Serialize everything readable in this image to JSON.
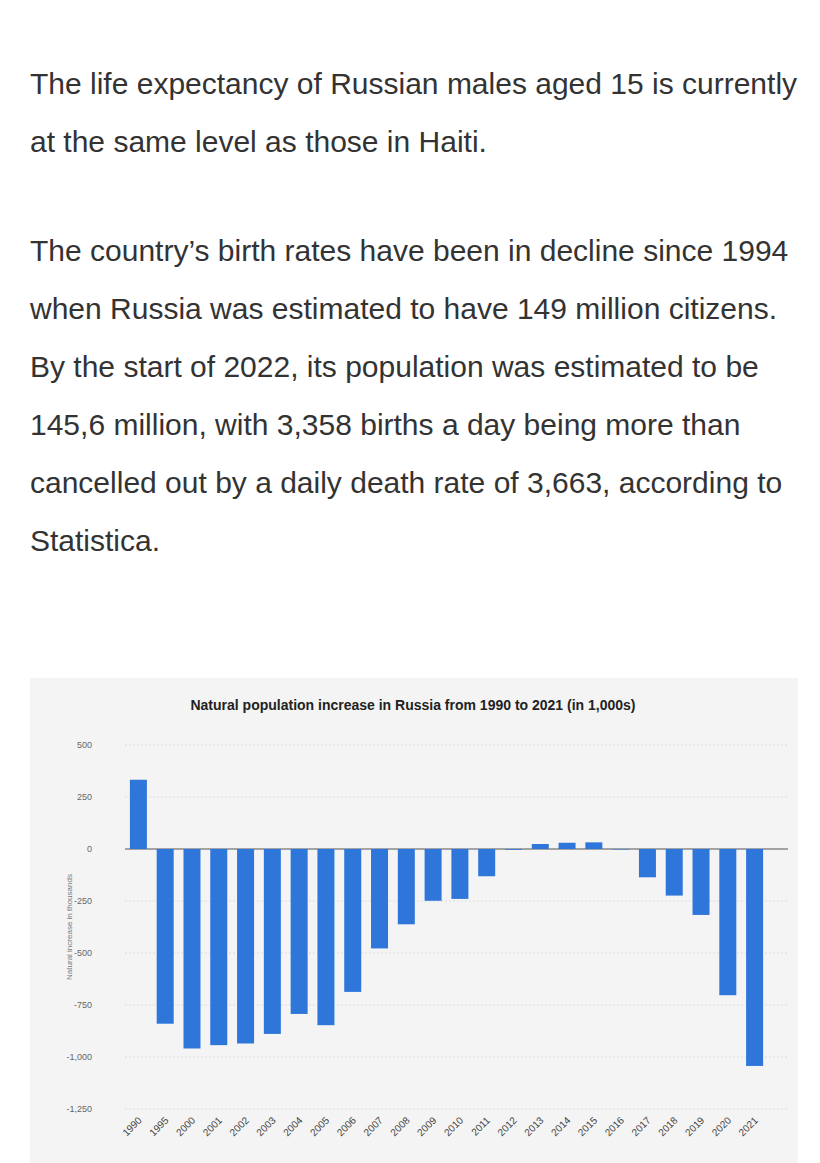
{
  "paragraphs": [
    "The life expectancy of Russian males aged 15 is currently at the same level as those in Haiti.",
    "The country’s birth rates have been in decline since 1994 when Russia was estimated to have 149 million citizens. By the start of 2022, its population was estimated to be 145,6 million, with 3,358 births a day being more than cancelled out by a daily death rate of 3,663, according to Statistica."
  ],
  "chart_data": {
    "type": "bar",
    "title": "Natural population increase in Russia from 1990 to 2021 (in 1,000s)",
    "y_label": "Natural increase in thousands",
    "categories": [
      "1990",
      "1995",
      "2000",
      "2001",
      "2002",
      "2003",
      "2004",
      "2005",
      "2006",
      "2007",
      "2008",
      "2009",
      "2010",
      "2011",
      "2012",
      "2013",
      "2014",
      "2015",
      "2016",
      "2017",
      "2018",
      "2019",
      "2020",
      "2021"
    ],
    "values": [
      333,
      -840,
      -959,
      -943,
      -935,
      -889,
      -793,
      -847,
      -687,
      -478,
      -362,
      -249,
      -240,
      -131,
      -4,
      24,
      30,
      32,
      -2,
      -136,
      -224,
      -317,
      -703,
      -1043
    ],
    "color": "#2f76db",
    "ylim": [
      -1250,
      500
    ],
    "yticks": [
      500,
      250,
      0,
      -250,
      -500,
      -750,
      {
        "value": -1000,
        "label": "-1,000"
      },
      {
        "value": -1250,
        "label": "-1,250"
      }
    ],
    "grid": true
  }
}
